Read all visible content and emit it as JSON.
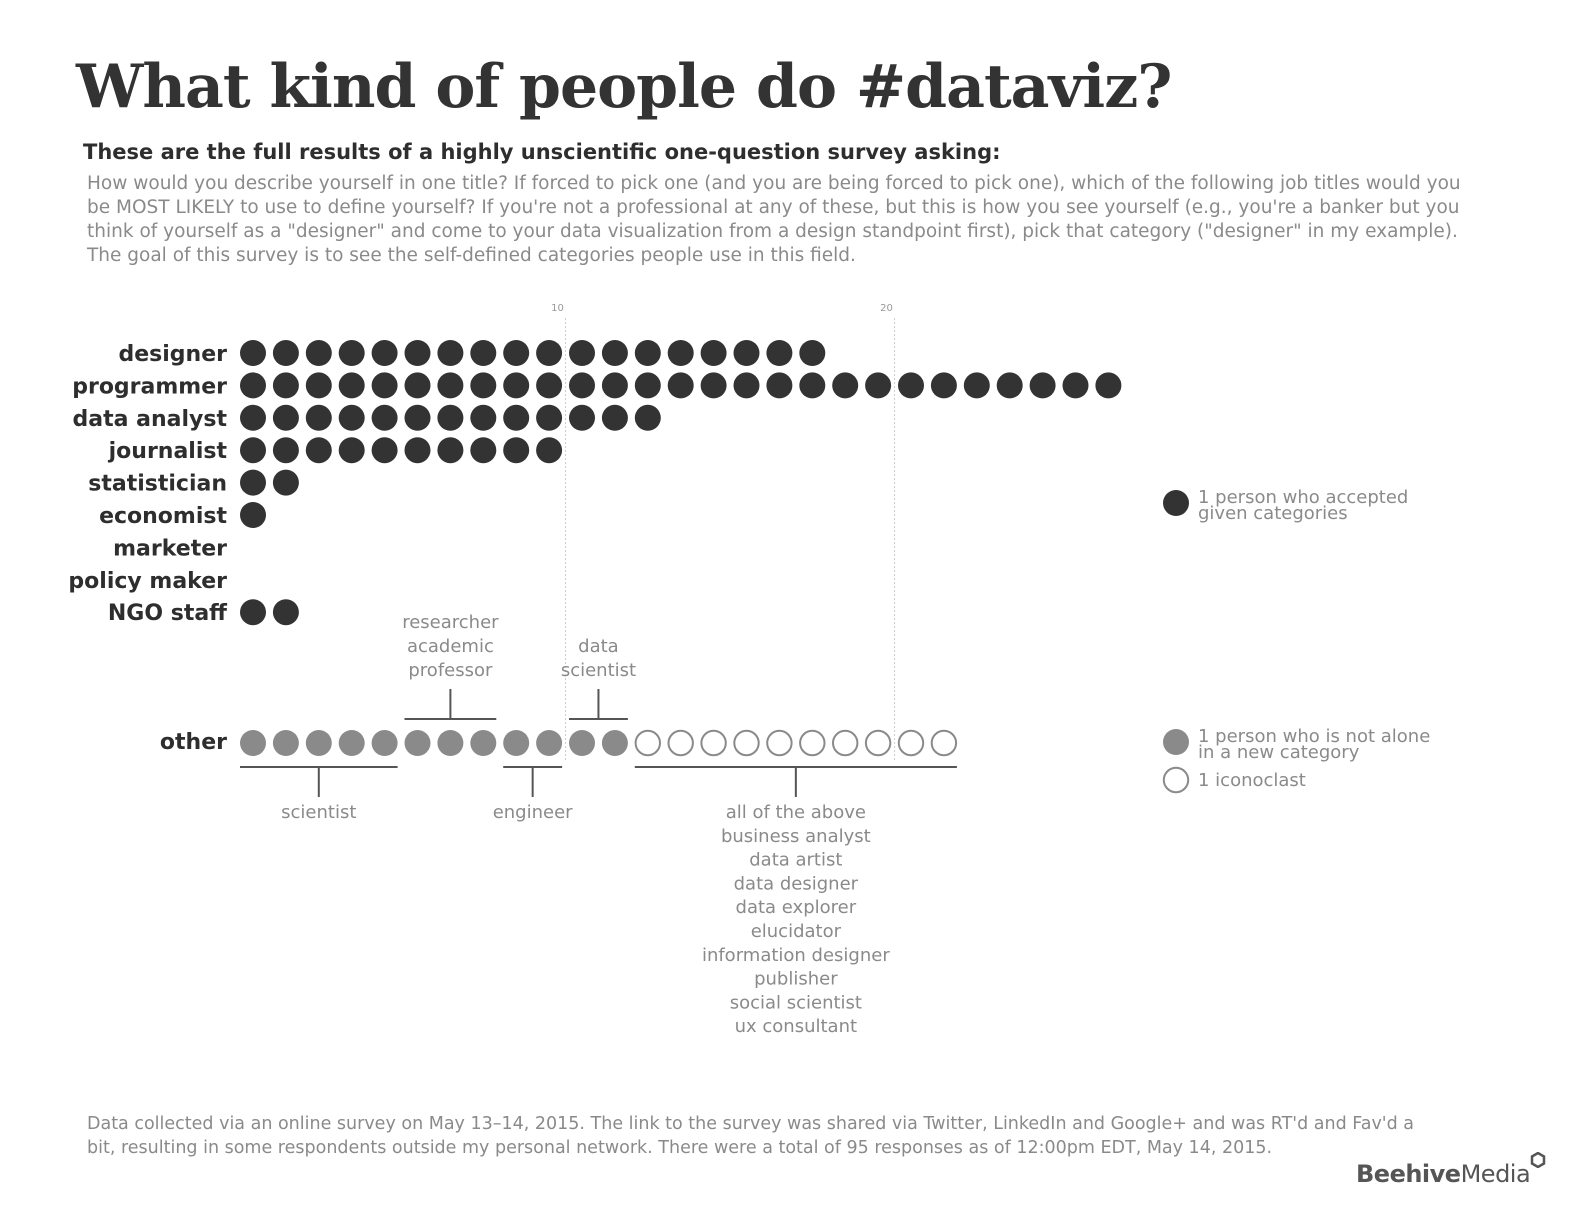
{
  "header": {
    "title": "What kind of people do #dataviz?",
    "subtitle": "These are the full results of a highly unscientific one-question survey asking:",
    "question": "How would you describe yourself in one title? If forced to pick one (and you are being forced to pick one), which of the following job titles would you be MOST LIKELY to use to define yourself? If you're not a professional at any of these, but this is how you see yourself (e.g., you're a banker but you think of yourself as a \"designer\" and come to your data visualization from a design standpoint first), pick that category (\"designer\" in my example). The goal of this survey is to see the self-defined categories people use in this field."
  },
  "chart_data": {
    "type": "dot_plot",
    "unit": "1 dot = 1 person",
    "ticks": [
      10,
      20
    ],
    "tick_labels": [
      "10",
      "20"
    ],
    "categories": [
      {
        "label": "designer",
        "count": 18
      },
      {
        "label": "programmer",
        "count": 27
      },
      {
        "label": "data analyst",
        "count": 13
      },
      {
        "label": "journalist",
        "count": 10
      },
      {
        "label": "statistician",
        "count": 2
      },
      {
        "label": "economist",
        "count": 1
      },
      {
        "label": "marketer",
        "count": 0
      },
      {
        "label": "policy maker",
        "count": 0
      },
      {
        "label": "NGO staff",
        "count": 2
      }
    ],
    "other": {
      "label": "other",
      "not_alone_count": 12,
      "iconoclast_count": 10,
      "groups_below": [
        {
          "lines": [
            "scientist"
          ],
          "start": 1,
          "end": 5
        },
        {
          "lines": [
            "engineer"
          ],
          "start": 9,
          "end": 10
        },
        {
          "lines": [
            "all of the above",
            "business analyst",
            "data artist",
            "data designer",
            "data explorer",
            "elucidator",
            "information designer",
            "publisher",
            "social scientist",
            "ux consultant"
          ],
          "start": 13,
          "end": 22
        }
      ],
      "groups_above": [
        {
          "lines": [
            "researcher",
            "academic",
            "professor"
          ],
          "start": 6,
          "end": 8
        },
        {
          "lines": [
            "data",
            "scientist"
          ],
          "start": 11,
          "end": 12
        }
      ]
    },
    "legend": [
      {
        "type": "accepted",
        "lines": [
          "1 person who accepted",
          "given categories"
        ],
        "color": "#333333"
      },
      {
        "type": "not_alone",
        "lines": [
          "1 person who is not alone",
          "in a new category"
        ],
        "color": "#8a8a8a"
      },
      {
        "type": "iconoclast",
        "lines": [
          "1 iconoclast"
        ],
        "color": "#ffffff"
      }
    ]
  },
  "footer": {
    "note": "Data collected via an online survey on May 13–14, 2015. The link to the survey was shared via Twitter, LinkedIn and Google+ and was RT'd and Fav'd a bit, resulting in some respondents outside my personal network. There were a total of 95 responses as of 12:00pm EDT, May 14, 2015.",
    "logo_bold": "Beehive",
    "logo_regular": "Media"
  },
  "colors": {
    "dark_dot": "#333333",
    "gray_dot": "#8a8a8a",
    "bracket": "#555555",
    "gridline": "#cccccc"
  }
}
